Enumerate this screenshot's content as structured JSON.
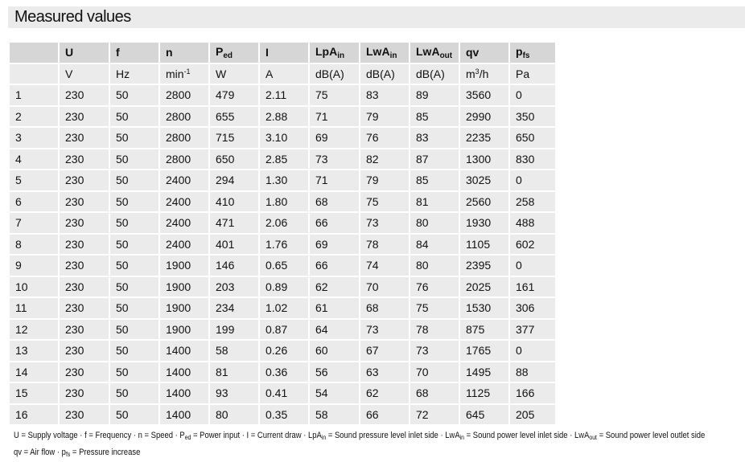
{
  "title": "Measured values",
  "table": {
    "headers": [
      {
        "text": ""
      },
      {
        "text": "U"
      },
      {
        "text": "f"
      },
      {
        "text": "n"
      },
      {
        "text": "P",
        "sub": "ed"
      },
      {
        "text": "I"
      },
      {
        "text": "LpA",
        "sub": "in"
      },
      {
        "text": "LwA",
        "sub": "in"
      },
      {
        "text": "LwA",
        "sub": "out"
      },
      {
        "text": "qv"
      },
      {
        "text": "p",
        "sub": "fs"
      }
    ],
    "units": [
      {
        "text": ""
      },
      {
        "text": "V"
      },
      {
        "text": "Hz"
      },
      {
        "text": "min",
        "sup": "-1"
      },
      {
        "text": "W"
      },
      {
        "text": "A"
      },
      {
        "text": "dB(A)"
      },
      {
        "text": "dB(A)"
      },
      {
        "text": "dB(A)"
      },
      {
        "text": "m",
        "sup": "3",
        "after": "/h"
      },
      {
        "text": "Pa"
      }
    ],
    "rows": [
      [
        "1",
        "230",
        "50",
        "2800",
        "479",
        "2.11",
        "75",
        "83",
        "89",
        "3560",
        "0"
      ],
      [
        "2",
        "230",
        "50",
        "2800",
        "655",
        "2.88",
        "71",
        "79",
        "85",
        "2990",
        "350"
      ],
      [
        "3",
        "230",
        "50",
        "2800",
        "715",
        "3.10",
        "69",
        "76",
        "83",
        "2235",
        "650"
      ],
      [
        "4",
        "230",
        "50",
        "2800",
        "650",
        "2.85",
        "73",
        "82",
        "87",
        "1300",
        "830"
      ],
      [
        "5",
        "230",
        "50",
        "2400",
        "294",
        "1.30",
        "71",
        "79",
        "85",
        "3025",
        "0"
      ],
      [
        "6",
        "230",
        "50",
        "2400",
        "410",
        "1.80",
        "68",
        "75",
        "81",
        "2560",
        "258"
      ],
      [
        "7",
        "230",
        "50",
        "2400",
        "471",
        "2.06",
        "66",
        "73",
        "80",
        "1930",
        "488"
      ],
      [
        "8",
        "230",
        "50",
        "2400",
        "401",
        "1.76",
        "69",
        "78",
        "84",
        "1105",
        "602"
      ],
      [
        "9",
        "230",
        "50",
        "1900",
        "146",
        "0.65",
        "66",
        "74",
        "80",
        "2395",
        "0"
      ],
      [
        "10",
        "230",
        "50",
        "1900",
        "203",
        "0.89",
        "62",
        "70",
        "76",
        "2025",
        "161"
      ],
      [
        "11",
        "230",
        "50",
        "1900",
        "234",
        "1.02",
        "61",
        "68",
        "75",
        "1530",
        "306"
      ],
      [
        "12",
        "230",
        "50",
        "1900",
        "199",
        "0.87",
        "64",
        "73",
        "78",
        "875",
        "377"
      ],
      [
        "13",
        "230",
        "50",
        "1400",
        "58",
        "0.26",
        "60",
        "67",
        "73",
        "1765",
        "0"
      ],
      [
        "14",
        "230",
        "50",
        "1400",
        "81",
        "0.36",
        "56",
        "63",
        "70",
        "1495",
        "88"
      ],
      [
        "15",
        "230",
        "50",
        "1400",
        "93",
        "0.41",
        "54",
        "62",
        "68",
        "1125",
        "166"
      ],
      [
        "16",
        "230",
        "50",
        "1400",
        "80",
        "0.35",
        "58",
        "66",
        "72",
        "645",
        "205"
      ]
    ]
  },
  "footnote": {
    "lines": [
      [
        {
          "text": "U = Supply voltage · f = Frequency · n = Speed · P"
        },
        {
          "sub": "ed"
        },
        {
          "text": " = Power input · I = Current draw · LpA"
        },
        {
          "sub": "in"
        },
        {
          "text": " = Sound pressure level inlet side · LwA"
        },
        {
          "sub": "in"
        },
        {
          "text": " = Sound power level inlet side · LwA"
        },
        {
          "sub": "out"
        },
        {
          "text": " = Sound power level outlet side"
        }
      ],
      [
        {
          "text": "qv = Air flow · p"
        },
        {
          "sub": "fs"
        },
        {
          "text": " = Pressure increase"
        }
      ]
    ]
  }
}
